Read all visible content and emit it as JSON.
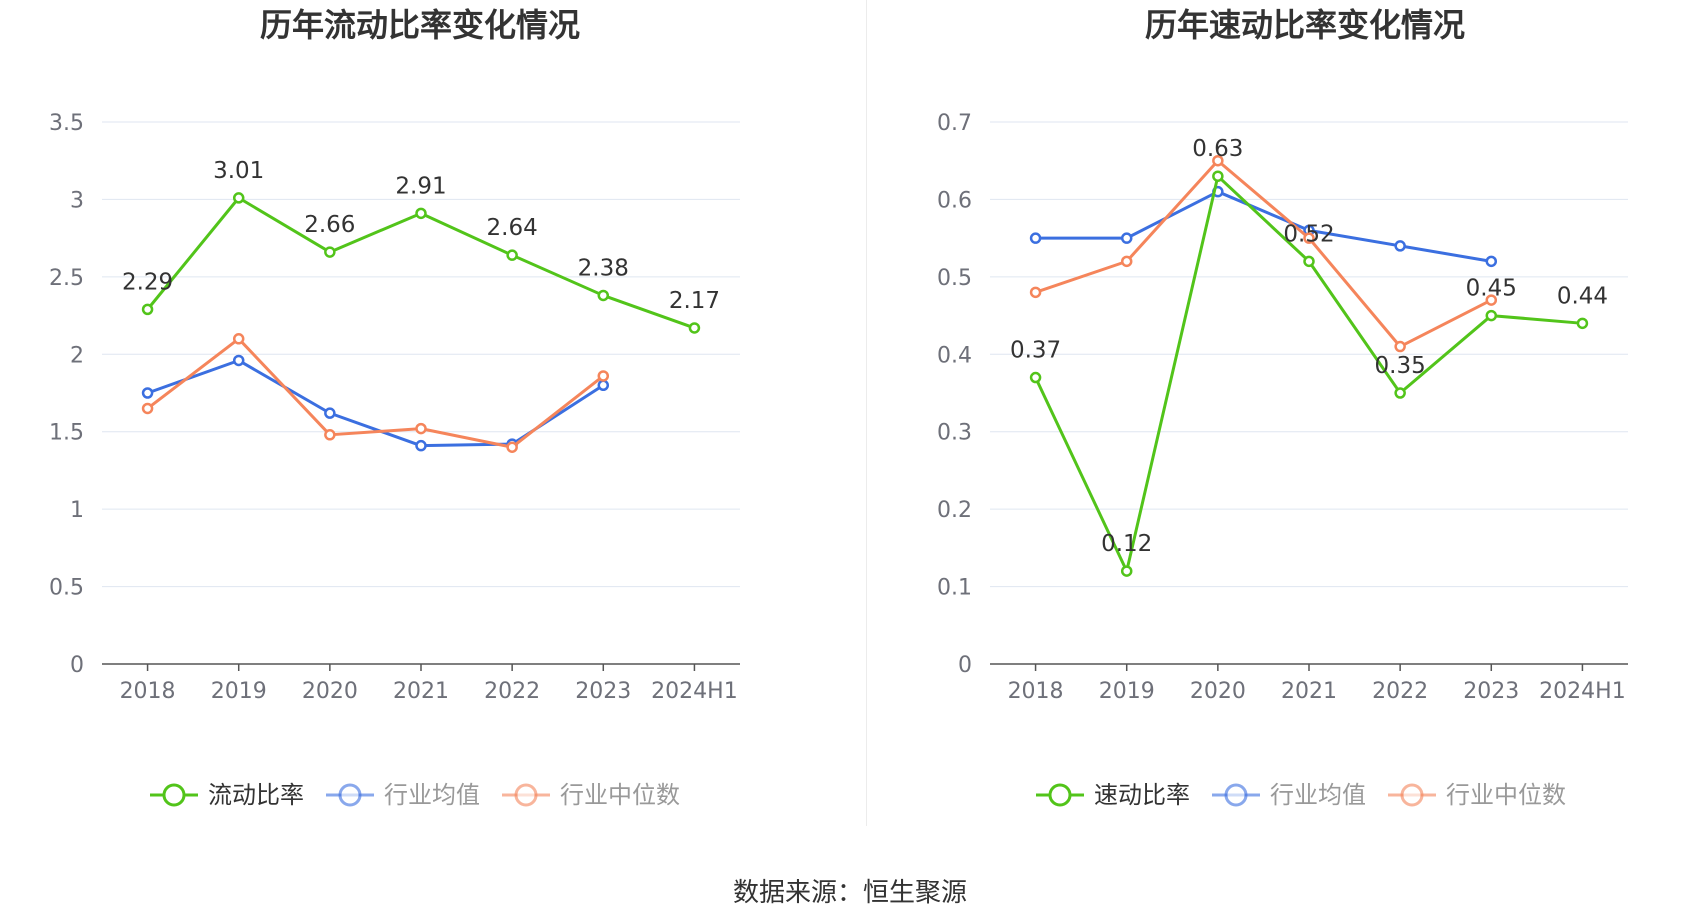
{
  "colors": {
    "company": "#52c41a",
    "industry_avg": "#3b6fe0",
    "industry_median": "#f5855b",
    "grid": "#dfe6f1",
    "axis": "#555555",
    "tick_text": "#6e7079",
    "title": "#333333"
  },
  "source_text": "数据来源：恒生聚源",
  "chart_data": [
    {
      "type": "line",
      "title": "历年流动比率变化情况",
      "categories": [
        "2018",
        "2019",
        "2020",
        "2021",
        "2022",
        "2023",
        "2024H1"
      ],
      "ylim": [
        0,
        3.5
      ],
      "yticks": [
        "0",
        "0.5",
        "1",
        "1.5",
        "2",
        "2.5",
        "3",
        "3.5"
      ],
      "grid": true,
      "legend_position": "bottom",
      "series": [
        {
          "name": "流动比率",
          "values": [
            2.29,
            3.01,
            2.66,
            2.91,
            2.64,
            2.38,
            2.17
          ],
          "labels": [
            "2.29",
            "3.01",
            "2.66",
            "2.91",
            "2.64",
            "2.38",
            "2.17"
          ]
        },
        {
          "name": "行业均值",
          "values": [
            1.75,
            1.96,
            1.62,
            1.41,
            1.42,
            1.8,
            null
          ]
        },
        {
          "name": "行业中位数",
          "values": [
            1.65,
            2.1,
            1.48,
            1.52,
            1.4,
            1.86,
            null
          ]
        }
      ]
    },
    {
      "type": "line",
      "title": "历年速动比率变化情况",
      "categories": [
        "2018",
        "2019",
        "2020",
        "2021",
        "2022",
        "2023",
        "2024H1"
      ],
      "ylim": [
        0,
        0.7
      ],
      "yticks": [
        "0",
        "0.1",
        "0.2",
        "0.3",
        "0.4",
        "0.5",
        "0.6",
        "0.7"
      ],
      "grid": true,
      "legend_position": "bottom",
      "series": [
        {
          "name": "速动比率",
          "values": [
            0.37,
            0.12,
            0.63,
            0.52,
            0.35,
            0.45,
            0.44
          ],
          "labels": [
            "0.37",
            "0.12",
            "0.63",
            "0.52",
            "0.35",
            "0.45",
            "0.44"
          ]
        },
        {
          "name": "行业均值",
          "values": [
            0.55,
            0.55,
            0.61,
            0.56,
            0.54,
            0.52,
            null
          ]
        },
        {
          "name": "行业中位数",
          "values": [
            0.48,
            0.52,
            0.65,
            0.55,
            0.41,
            0.47,
            null
          ]
        }
      ]
    }
  ]
}
